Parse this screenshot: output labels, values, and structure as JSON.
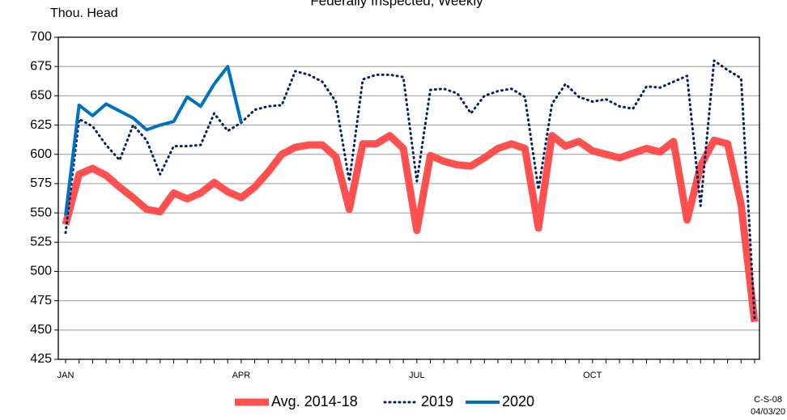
{
  "chart_data": {
    "type": "line",
    "title": "Federally Inspected, Weekly",
    "y_label": "Thou. Head",
    "notes": [
      "C-S-08",
      "04/03/20"
    ],
    "categories": [
      "JAN",
      null,
      null,
      null,
      null,
      null,
      null,
      null,
      null,
      null,
      null,
      null,
      null,
      "APR",
      null,
      null,
      null,
      null,
      null,
      null,
      null,
      null,
      null,
      null,
      null,
      null,
      "JUL",
      null,
      null,
      null,
      null,
      null,
      null,
      null,
      null,
      null,
      null,
      null,
      null,
      "OCT",
      null,
      null,
      null,
      null,
      null,
      null,
      null,
      null,
      null,
      null,
      null,
      null
    ],
    "series": [
      {
        "name": "Avg. 2014-18",
        "color": "#ff5050",
        "style": "thick",
        "values": [
          540,
          583,
          588,
          582,
          572,
          563,
          553,
          551,
          567,
          562,
          567,
          576,
          568,
          563,
          572,
          585,
          600,
          606,
          608,
          608,
          598,
          553,
          609,
          609,
          616,
          605,
          535,
          599,
          594,
          591,
          590,
          597,
          605,
          609,
          605,
          537,
          616,
          607,
          611,
          603,
          600,
          597,
          601,
          605,
          602,
          611,
          544,
          590,
          612,
          609,
          557,
          457
        ]
      },
      {
        "name": "2019",
        "color": "#002060",
        "style": "dotted",
        "values": [
          533,
          630,
          624,
          608,
          595,
          625,
          612,
          583,
          607,
          607,
          608,
          635,
          620,
          627,
          638,
          641,
          642,
          671,
          668,
          662,
          645,
          577,
          664,
          668,
          668,
          666,
          577,
          655,
          656,
          652,
          635,
          650,
          654,
          656,
          649,
          570,
          643,
          660,
          649,
          645,
          647,
          641,
          639,
          658,
          657,
          662,
          667,
          556,
          680,
          672,
          665,
          460
        ]
      },
      {
        "name": "2020",
        "color": "#0070c0",
        "style": "solid",
        "values": [
          548,
          642,
          633,
          643,
          637,
          631,
          621,
          625,
          628,
          649,
          641,
          660,
          675,
          627,
          null,
          null,
          null,
          null,
          null,
          null,
          null,
          null,
          null,
          null,
          null,
          null,
          null,
          null,
          null,
          null,
          null,
          null,
          null,
          null,
          null,
          null,
          null,
          null,
          null,
          null,
          null,
          null,
          null,
          null,
          null,
          null,
          null,
          null,
          null,
          null,
          null,
          null
        ]
      }
    ],
    "ylim": [
      425,
      700
    ],
    "yticks": [
      425,
      450,
      475,
      500,
      525,
      550,
      575,
      600,
      625,
      650,
      675,
      700
    ],
    "grid": true
  }
}
